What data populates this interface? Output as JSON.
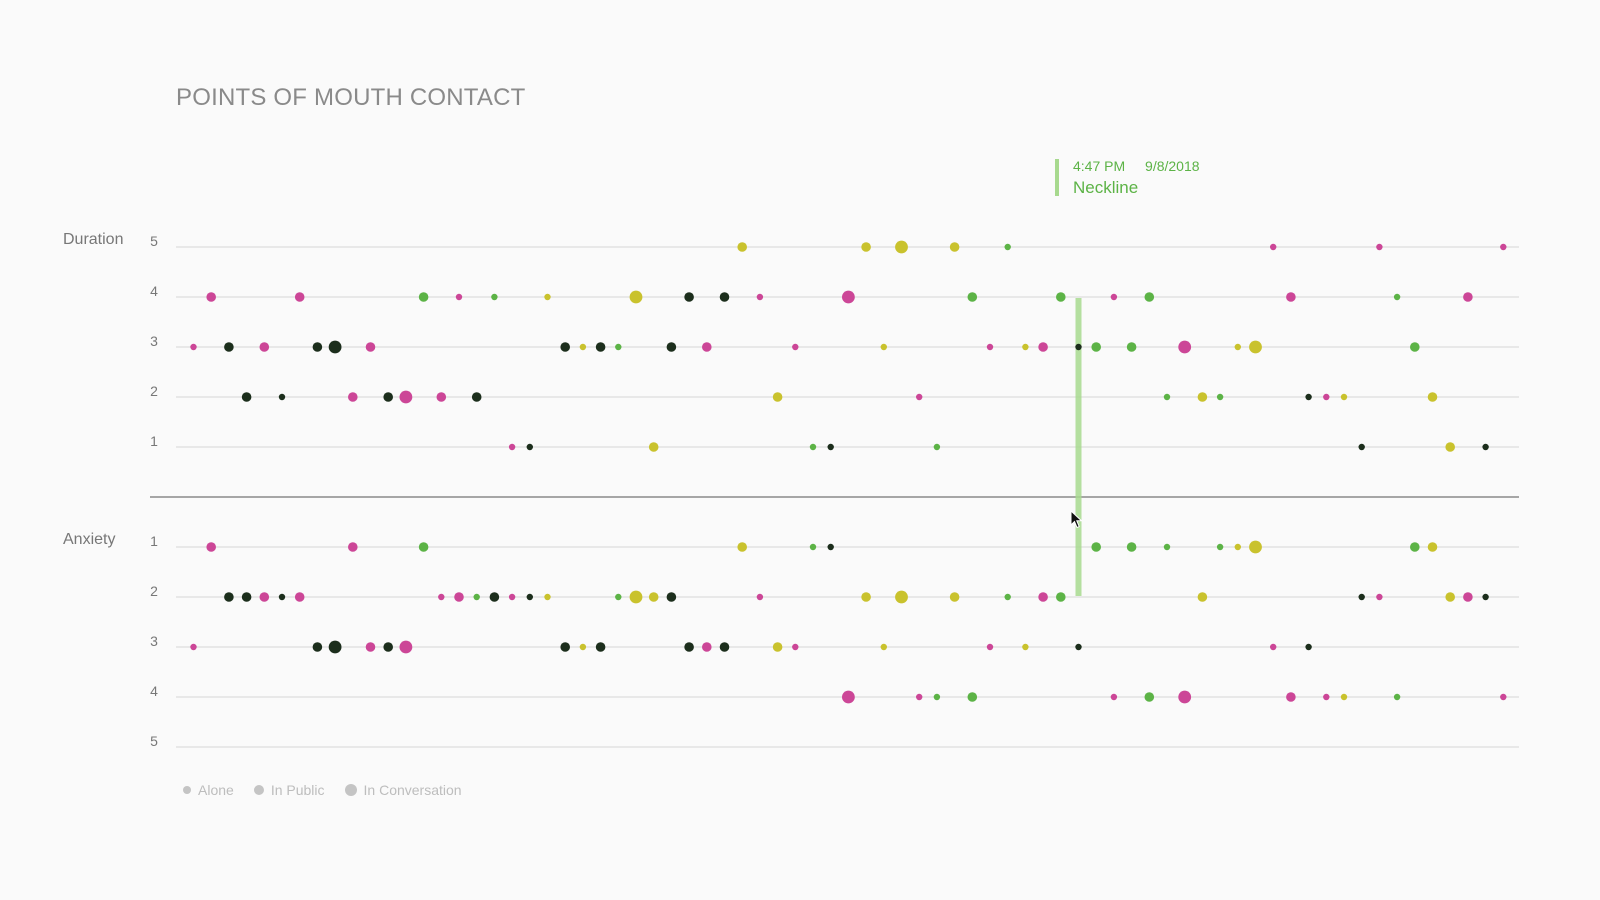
{
  "chart_data": {
    "type": "scatter",
    "title": "POINTS OF MOUTH CONTACT",
    "panels": [
      {
        "name": "Duration",
        "levels": [
          "5",
          "4",
          "3",
          "2",
          "1"
        ]
      },
      {
        "name": "Anxiety",
        "levels": [
          "1",
          "2",
          "3",
          "4",
          "5"
        ]
      }
    ],
    "legend_placement": "bottom-left",
    "legend": [
      {
        "label": "Alone",
        "size": "small"
      },
      {
        "label": "In Public",
        "size": "medium"
      },
      {
        "label": "In Conversation",
        "size": "large"
      }
    ],
    "colors": {
      "magenta": "#cc4697",
      "dark": "#1c2e1c",
      "green": "#5cb346",
      "yellow": "#c9c22d"
    },
    "tooltip": {
      "time": "4:47 PM",
      "date": "9/8/2018",
      "label": "Neckline",
      "x_index": 50
    },
    "series": {
      "duration": [
        [
          0,
          3,
          "m",
          1
        ],
        [
          1,
          4,
          "m",
          2
        ],
        [
          2,
          3,
          "d",
          2
        ],
        [
          3,
          2,
          "d",
          2
        ],
        [
          4,
          3,
          "m",
          2
        ],
        [
          5,
          2,
          "d",
          1
        ],
        [
          6,
          4,
          "m",
          2
        ],
        [
          7,
          3,
          "d",
          2
        ],
        [
          8,
          3,
          "d",
          3
        ],
        [
          9,
          2,
          "m",
          2
        ],
        [
          10,
          3,
          "m",
          2
        ],
        [
          11,
          2,
          "d",
          2
        ],
        [
          12,
          2,
          "m",
          3
        ],
        [
          13,
          4,
          "g",
          2
        ],
        [
          14,
          2,
          "m",
          2
        ],
        [
          15,
          4,
          "m",
          1
        ],
        [
          16,
          2,
          "d",
          2
        ],
        [
          17,
          4,
          "g",
          1
        ],
        [
          18,
          1,
          "m",
          1
        ],
        [
          19,
          1,
          "d",
          1
        ],
        [
          20,
          4,
          "y",
          1
        ],
        [
          21,
          3,
          "d",
          2
        ],
        [
          22,
          3,
          "y",
          1
        ],
        [
          23,
          3,
          "d",
          2
        ],
        [
          24,
          3,
          "g",
          1
        ],
        [
          25,
          4,
          "y",
          3
        ],
        [
          26,
          1,
          "y",
          2
        ],
        [
          27,
          3,
          "d",
          2
        ],
        [
          28,
          4,
          "d",
          2
        ],
        [
          29,
          3,
          "m",
          2
        ],
        [
          30,
          4,
          "d",
          2
        ],
        [
          31,
          5,
          "y",
          2
        ],
        [
          32,
          4,
          "m",
          1
        ],
        [
          33,
          2,
          "y",
          2
        ],
        [
          34,
          3,
          "m",
          1
        ],
        [
          35,
          1,
          "g",
          1
        ],
        [
          36,
          1,
          "d",
          1
        ],
        [
          37,
          4,
          "m",
          3
        ],
        [
          38,
          5,
          "y",
          2
        ],
        [
          39,
          3,
          "y",
          1
        ],
        [
          40,
          5,
          "y",
          3
        ],
        [
          41,
          2,
          "m",
          1
        ],
        [
          42,
          1,
          "g",
          1
        ],
        [
          43,
          5,
          "y",
          2
        ],
        [
          44,
          4,
          "g",
          2
        ],
        [
          45,
          3,
          "m",
          1
        ],
        [
          46,
          5,
          "g",
          1
        ],
        [
          47,
          3,
          "y",
          1
        ],
        [
          48,
          3,
          "m",
          2
        ],
        [
          49,
          4,
          "g",
          2
        ],
        [
          50,
          3,
          "d",
          1
        ],
        [
          51,
          3,
          "g",
          2
        ],
        [
          52,
          4,
          "m",
          1
        ],
        [
          53,
          3,
          "g",
          2
        ],
        [
          54,
          4,
          "g",
          2
        ],
        [
          55,
          2,
          "g",
          1
        ],
        [
          56,
          3,
          "m",
          3
        ],
        [
          57,
          2,
          "y",
          2
        ],
        [
          58,
          2,
          "g",
          1
        ],
        [
          59,
          3,
          "y",
          1
        ],
        [
          60,
          3,
          "y",
          3
        ],
        [
          61,
          5,
          "m",
          1
        ],
        [
          62,
          4,
          "m",
          2
        ],
        [
          63,
          2,
          "d",
          1
        ],
        [
          64,
          2,
          "m",
          1
        ],
        [
          65,
          2,
          "y",
          1
        ],
        [
          66,
          1,
          "d",
          1
        ],
        [
          67,
          5,
          "m",
          1
        ],
        [
          68,
          4,
          "g",
          1
        ],
        [
          69,
          3,
          "g",
          2
        ],
        [
          70,
          2,
          "y",
          2
        ],
        [
          71,
          1,
          "y",
          2
        ],
        [
          72,
          4,
          "m",
          2
        ],
        [
          73,
          1,
          "d",
          1
        ],
        [
          74,
          5,
          "m",
          1
        ]
      ],
      "anxiety": [
        [
          0,
          3,
          "m",
          1
        ],
        [
          1,
          1,
          "m",
          2
        ],
        [
          2,
          2,
          "d",
          2
        ],
        [
          3,
          2,
          "d",
          2
        ],
        [
          4,
          2,
          "m",
          2
        ],
        [
          5,
          2,
          "d",
          1
        ],
        [
          6,
          2,
          "m",
          2
        ],
        [
          7,
          3,
          "d",
          2
        ],
        [
          8,
          3,
          "d",
          3
        ],
        [
          9,
          1,
          "m",
          2
        ],
        [
          10,
          3,
          "m",
          2
        ],
        [
          11,
          3,
          "d",
          2
        ],
        [
          12,
          3,
          "m",
          3
        ],
        [
          13,
          1,
          "g",
          2
        ],
        [
          14,
          2,
          "m",
          1
        ],
        [
          15,
          2,
          "m",
          2
        ],
        [
          16,
          2,
          "g",
          1
        ],
        [
          17,
          2,
          "d",
          2
        ],
        [
          18,
          2,
          "m",
          1
        ],
        [
          19,
          2,
          "d",
          1
        ],
        [
          20,
          2,
          "y",
          1
        ],
        [
          21,
          3,
          "d",
          2
        ],
        [
          22,
          3,
          "y",
          1
        ],
        [
          23,
          3,
          "d",
          2
        ],
        [
          24,
          2,
          "g",
          1
        ],
        [
          25,
          2,
          "y",
          3
        ],
        [
          26,
          2,
          "y",
          2
        ],
        [
          27,
          2,
          "d",
          2
        ],
        [
          28,
          3,
          "d",
          2
        ],
        [
          29,
          3,
          "m",
          2
        ],
        [
          30,
          3,
          "d",
          2
        ],
        [
          31,
          1,
          "y",
          2
        ],
        [
          32,
          2,
          "m",
          1
        ],
        [
          33,
          3,
          "y",
          2
        ],
        [
          34,
          3,
          "m",
          1
        ],
        [
          35,
          1,
          "g",
          1
        ],
        [
          36,
          1,
          "d",
          1
        ],
        [
          37,
          4,
          "m",
          3
        ],
        [
          38,
          2,
          "y",
          2
        ],
        [
          39,
          3,
          "y",
          1
        ],
        [
          40,
          2,
          "y",
          3
        ],
        [
          41,
          4,
          "m",
          1
        ],
        [
          42,
          4,
          "g",
          1
        ],
        [
          43,
          2,
          "y",
          2
        ],
        [
          44,
          4,
          "g",
          2
        ],
        [
          45,
          3,
          "m",
          1
        ],
        [
          46,
          2,
          "g",
          1
        ],
        [
          47,
          3,
          "y",
          1
        ],
        [
          48,
          2,
          "m",
          2
        ],
        [
          49,
          2,
          "g",
          2
        ],
        [
          50,
          3,
          "d",
          1
        ],
        [
          51,
          1,
          "g",
          2
        ],
        [
          52,
          4,
          "m",
          1
        ],
        [
          53,
          1,
          "g",
          2
        ],
        [
          54,
          4,
          "g",
          2
        ],
        [
          55,
          1,
          "g",
          1
        ],
        [
          56,
          4,
          "m",
          3
        ],
        [
          57,
          2,
          "y",
          2
        ],
        [
          58,
          1,
          "g",
          1
        ],
        [
          59,
          1,
          "y",
          1
        ],
        [
          60,
          1,
          "y",
          3
        ],
        [
          61,
          3,
          "m",
          1
        ],
        [
          62,
          4,
          "m",
          2
        ],
        [
          63,
          3,
          "d",
          1
        ],
        [
          64,
          4,
          "m",
          1
        ],
        [
          65,
          4,
          "y",
          1
        ],
        [
          66,
          2,
          "d",
          1
        ],
        [
          67,
          2,
          "m",
          1
        ],
        [
          68,
          4,
          "g",
          1
        ],
        [
          69,
          1,
          "g",
          2
        ],
        [
          70,
          1,
          "y",
          2
        ],
        [
          71,
          2,
          "y",
          2
        ],
        [
          72,
          2,
          "m",
          2
        ],
        [
          73,
          2,
          "d",
          1
        ],
        [
          74,
          4,
          "m",
          1
        ]
      ]
    }
  }
}
